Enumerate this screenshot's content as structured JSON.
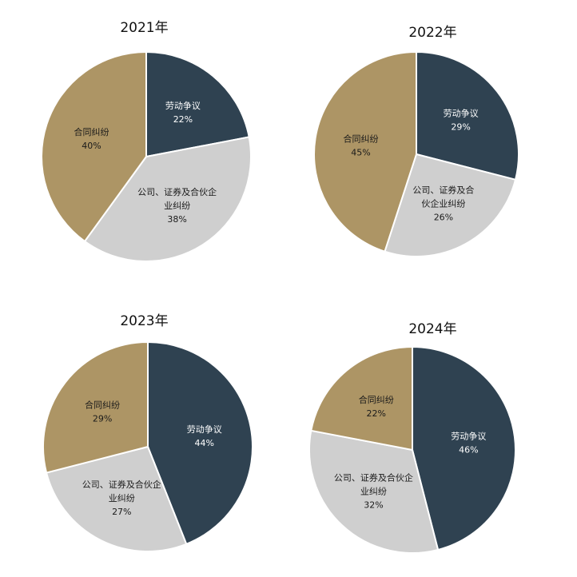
{
  "colors": {
    "labor": "#2f4251",
    "corporate": "#cfcfcf",
    "contract": "#ad9565"
  },
  "chart_data": [
    {
      "type": "pie",
      "title": "2021年",
      "slices": [
        {
          "label": "劳动争议",
          "label_lines": [
            "劳动争议"
          ],
          "value": 22,
          "value_label": "22%",
          "color_key": "labor"
        },
        {
          "label": "公司、证券及合伙企业纠纷",
          "label_lines": [
            "公司、证券及合伙企",
            "业纠纷"
          ],
          "value": 38,
          "value_label": "38%",
          "color_key": "corporate"
        },
        {
          "label": "合同纠纷",
          "label_lines": [
            "合同纠纷"
          ],
          "value": 40,
          "value_label": "40%",
          "color_key": "contract"
        }
      ]
    },
    {
      "type": "pie",
      "title": "2022年",
      "slices": [
        {
          "label": "劳动争议",
          "label_lines": [
            "劳动争议"
          ],
          "value": 29,
          "value_label": "29%",
          "color_key": "labor"
        },
        {
          "label": "公司、证券及合伙企业纠纷",
          "label_lines": [
            "公司、证券及合",
            "伙企业纠纷"
          ],
          "value": 26,
          "value_label": "26%",
          "color_key": "corporate"
        },
        {
          "label": "合同纠纷",
          "label_lines": [
            "合同纠纷"
          ],
          "value": 45,
          "value_label": "45%",
          "color_key": "contract"
        }
      ]
    },
    {
      "type": "pie",
      "title": "2023年",
      "slices": [
        {
          "label": "劳动争议",
          "label_lines": [
            "劳动争议"
          ],
          "value": 44,
          "value_label": "44%",
          "color_key": "labor"
        },
        {
          "label": "公司、证券及合伙企业纠纷",
          "label_lines": [
            "公司、证券及合伙企",
            "业纠纷"
          ],
          "value": 27,
          "value_label": "27%",
          "color_key": "corporate"
        },
        {
          "label": "合同纠纷",
          "label_lines": [
            "合同纠纷"
          ],
          "value": 29,
          "value_label": "29%",
          "color_key": "contract"
        }
      ]
    },
    {
      "type": "pie",
      "title": "2024年",
      "slices": [
        {
          "label": "劳动争议",
          "label_lines": [
            "劳动争议"
          ],
          "value": 46,
          "value_label": "46%",
          "color_key": "labor"
        },
        {
          "label": "公司、证券及合伙企业纠纷",
          "label_lines": [
            "公司、证券及合伙企",
            "业纠纷"
          ],
          "value": 32,
          "value_label": "32%",
          "color_key": "corporate"
        },
        {
          "label": "合同纠纷",
          "label_lines": [
            "合同纠纷"
          ],
          "value": 22,
          "value_label": "22%",
          "color_key": "contract"
        }
      ]
    }
  ]
}
